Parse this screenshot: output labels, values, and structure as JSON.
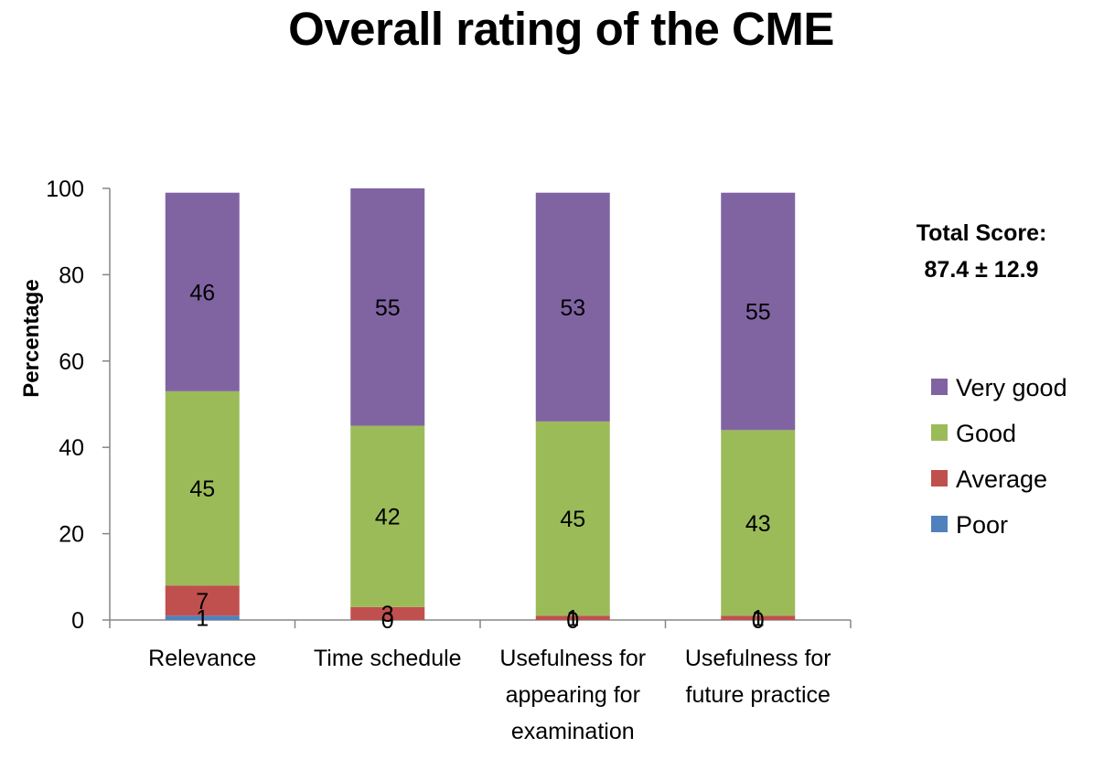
{
  "chart_data": {
    "type": "bar",
    "stacked": true,
    "title": "Overall rating of the CME",
    "xlabel": "",
    "ylabel": "Percentage",
    "ylim": [
      0,
      100
    ],
    "yticks": [
      0,
      20,
      40,
      60,
      80,
      100
    ],
    "grid": false,
    "legend_position": "right",
    "categories": [
      [
        "Relevance"
      ],
      [
        "Time schedule"
      ],
      [
        "Usefulness for",
        "appearing for",
        "examination"
      ],
      [
        "Usefulness for",
        "future practice"
      ]
    ],
    "series": [
      {
        "name": "Poor",
        "color": "#4F81BD",
        "values": [
          1,
          0,
          0,
          0
        ]
      },
      {
        "name": "Average",
        "color": "#C0504D",
        "values": [
          7,
          3,
          1,
          1
        ]
      },
      {
        "name": "Good",
        "color": "#9BBB59",
        "values": [
          45,
          42,
          45,
          43
        ]
      },
      {
        "name": "Very good",
        "color": "#8064A2",
        "values": [
          46,
          55,
          53,
          55
        ]
      }
    ],
    "annotation": [
      "Total Score:",
      "87.4 ± 12.9"
    ]
  }
}
